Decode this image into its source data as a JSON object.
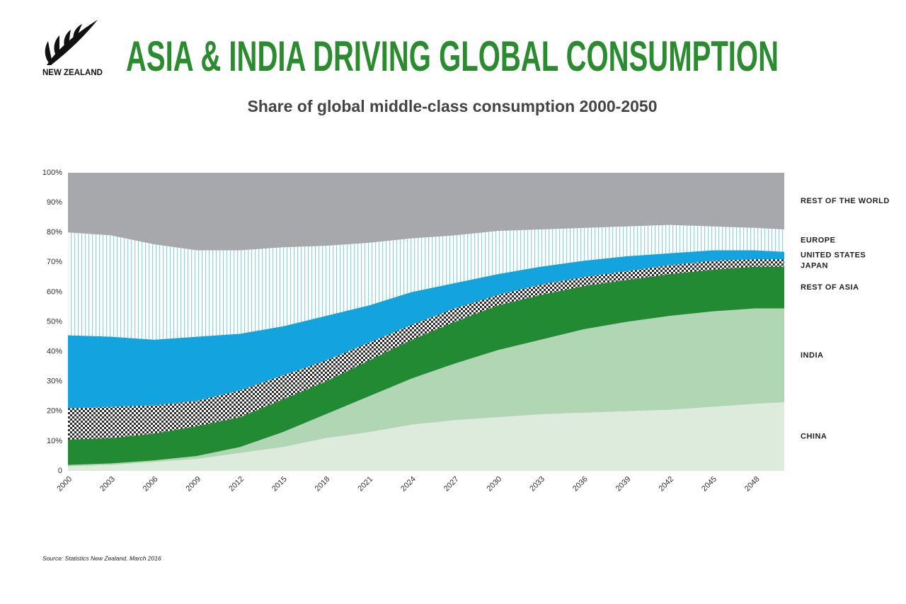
{
  "logo": {
    "text": "NEW ZEALAND"
  },
  "chart_data": {
    "type": "stacked-area",
    "title": "ASIA & INDIA DRIVING GLOBAL CONSUMPTION",
    "subtitle": "Share of global middle-class consumption 2000-2050",
    "source": "Source: Statistics New Zealand, March 2016",
    "x": [
      2000,
      2003,
      2006,
      2009,
      2012,
      2015,
      2018,
      2021,
      2024,
      2027,
      2030,
      2033,
      2036,
      2039,
      2042,
      2045,
      2048,
      2050
    ],
    "xlim": [
      2000,
      2050
    ],
    "xticks": [
      2000,
      2003,
      2006,
      2009,
      2012,
      2015,
      2018,
      2021,
      2024,
      2027,
      2030,
      2033,
      2036,
      2039,
      2042,
      2045,
      2048
    ],
    "ylim": [
      0,
      100
    ],
    "yticks": [
      0,
      {
        "value": 10,
        "label": "10%"
      },
      {
        "value": 20,
        "label": "20%"
      },
      {
        "value": 30,
        "label": "30%"
      },
      {
        "value": 40,
        "label": "40%"
      },
      {
        "value": 50,
        "label": "50%"
      },
      {
        "value": 60,
        "label": "60%"
      },
      {
        "value": 70,
        "label": "70%"
      },
      {
        "value": 80,
        "label": "80%"
      },
      {
        "value": 90,
        "label": "90%"
      },
      {
        "value": 100,
        "label": "100%"
      }
    ],
    "grid": false,
    "legend": "right",
    "series": [
      {
        "name": "CHINA",
        "color": "#dcebdc",
        "values": [
          1.5,
          2,
          3,
          4,
          6,
          8,
          11,
          13,
          15.5,
          17,
          18,
          19,
          19.5,
          20,
          20.5,
          21.5,
          22.5,
          23
        ]
      },
      {
        "name": "INDIA",
        "color": "#b1d6b4",
        "values": [
          0.5,
          0.5,
          0.5,
          1,
          2,
          5,
          8,
          12,
          15.5,
          19,
          22.5,
          25,
          28,
          30,
          31.5,
          32,
          32,
          31.5
        ]
      },
      {
        "name": "REST OF ASIA",
        "color": "#238a34",
        "values": [
          8.5,
          8.5,
          9,
          10,
          10,
          11,
          11,
          12,
          13,
          14,
          15,
          15,
          14.5,
          14,
          14,
          14,
          14,
          14
        ]
      },
      {
        "name": "JAPAN",
        "color": "#2b2b2b",
        "pattern": "checker",
        "values": [
          10.5,
          10.5,
          9.5,
          8.5,
          9,
          8,
          7,
          6,
          5,
          4.5,
          3.5,
          3.5,
          3,
          3,
          3,
          3,
          2.5,
          2.5
        ]
      },
      {
        "name": "UNITED STATES",
        "color": "#13a3de",
        "values": [
          24.5,
          23.5,
          22,
          21.5,
          19,
          16.5,
          15,
          12.5,
          11,
          8.5,
          7,
          6,
          5.5,
          5,
          4,
          3.5,
          3,
          2.5
        ]
      },
      {
        "name": "EUROPE",
        "color": "#8fd3ea",
        "pattern": "vertical-lines",
        "values": [
          34.5,
          34,
          32,
          29,
          28,
          26.5,
          23.5,
          21,
          18,
          16,
          14.5,
          12.5,
          11,
          10,
          9.5,
          8,
          7.5,
          7.5
        ]
      },
      {
        "name": "REST OF THE WORLD",
        "color": "#a7a8ab",
        "values": [
          20,
          21,
          24,
          26,
          26,
          25,
          24.5,
          23.5,
          22,
          21,
          19.5,
          19,
          18.5,
          18,
          17.5,
          18,
          18.5,
          19
        ]
      }
    ]
  }
}
